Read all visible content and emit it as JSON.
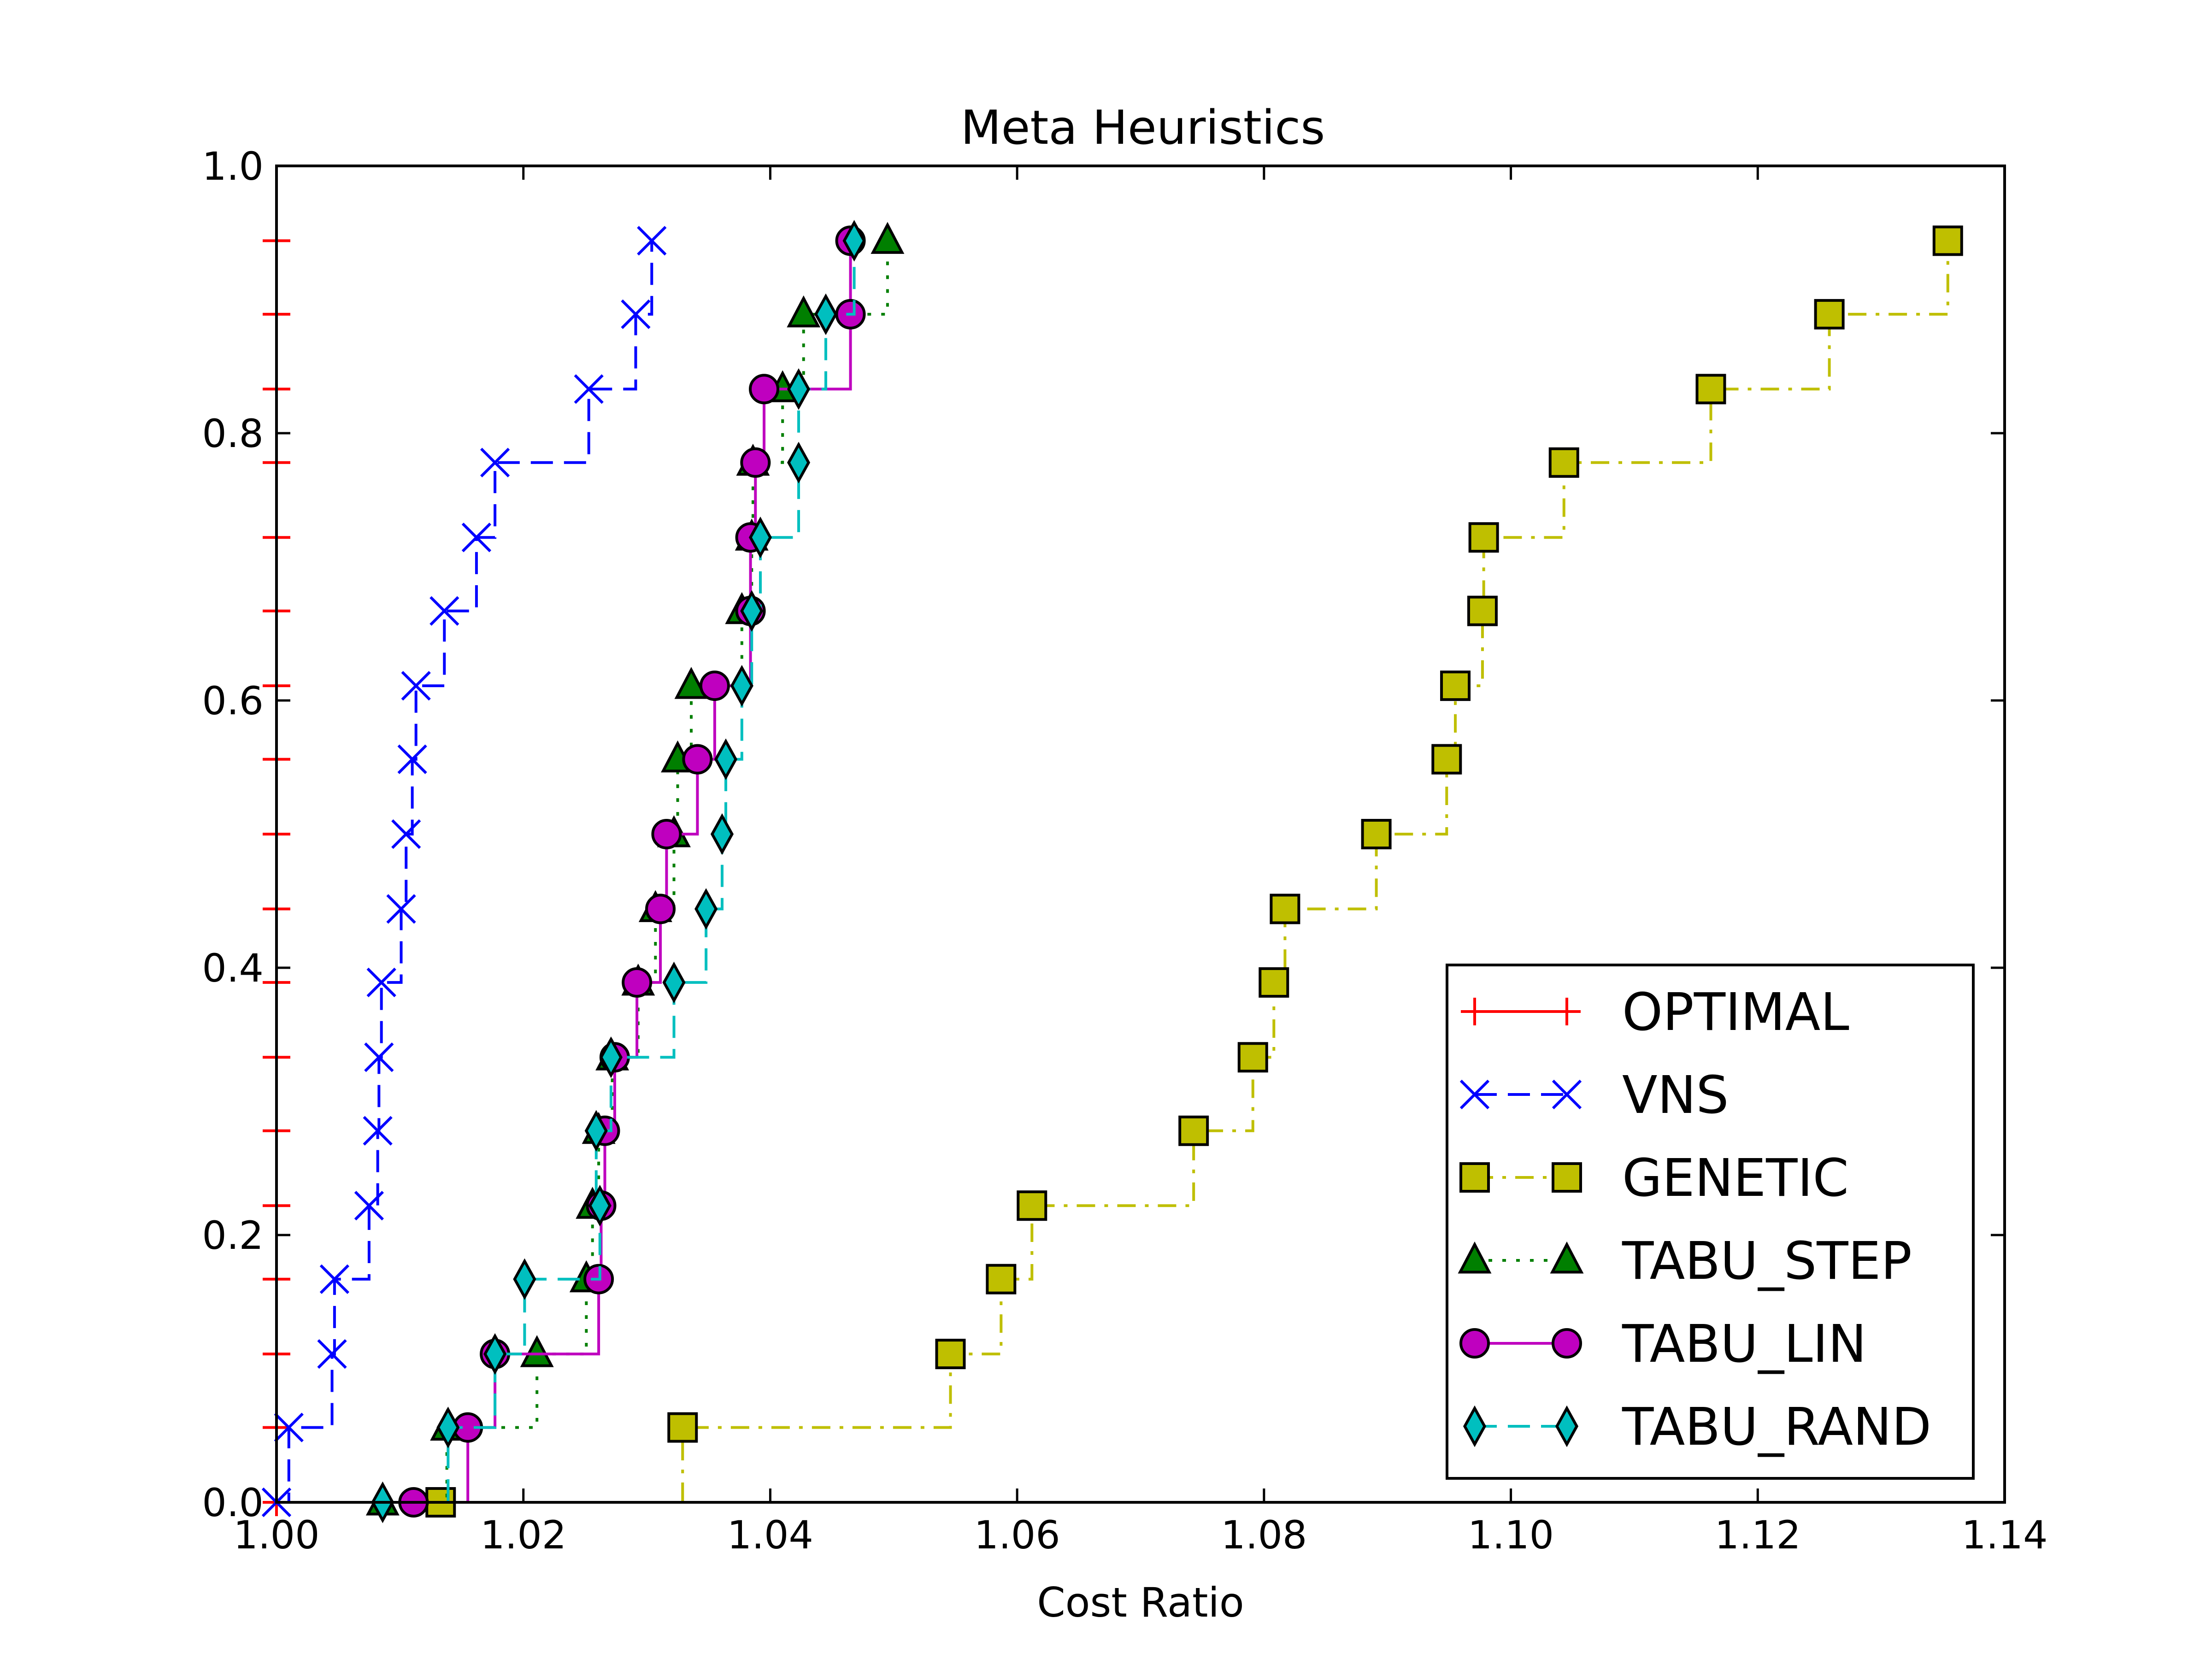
{
  "chart_data": {
    "type": "line",
    "title": "Meta Heuristics",
    "xlabel": "Cost Ratio",
    "ylabel": "",
    "xlim": [
      1.0,
      1.14
    ],
    "ylim": [
      0.0,
      1.0
    ],
    "xticks": [
      "1.00",
      "1.02",
      "1.04",
      "1.06",
      "1.08",
      "1.10",
      "1.12",
      "1.14"
    ],
    "yticks": [
      "0.0",
      "0.2",
      "0.4",
      "0.6",
      "0.8",
      "1.0"
    ],
    "grid": false,
    "legend_position": "lower-right",
    "series": [
      {
        "name": "OPTIMAL",
        "color": "#ff0000",
        "marker": "plus",
        "line_style": "solid",
        "x": [
          1.0,
          1.0,
          1.0,
          1.0,
          1.0,
          1.0,
          1.0,
          1.0,
          1.0,
          1.0,
          1.0,
          1.0,
          1.0,
          1.0,
          1.0,
          1.0,
          1.0,
          1.0
        ],
        "y": [
          0.0,
          0.056,
          0.111,
          0.167,
          0.222,
          0.278,
          0.333,
          0.389,
          0.444,
          0.5,
          0.556,
          0.611,
          0.667,
          0.722,
          0.778,
          0.833,
          0.889,
          0.944
        ]
      },
      {
        "name": "VNS",
        "color": "#0000ff",
        "marker": "x",
        "line_style": "dashed",
        "x": [
          1.0,
          1.001,
          1.0045,
          1.0047,
          1.0075,
          1.0082,
          1.0083,
          1.0085,
          1.0101,
          1.0105,
          1.011,
          1.0113,
          1.0136,
          1.0162,
          1.0177,
          1.0253,
          1.0291,
          1.0304
        ],
        "y": [
          0.0,
          0.056,
          0.111,
          0.167,
          0.222,
          0.278,
          0.333,
          0.389,
          0.444,
          0.5,
          0.556,
          0.611,
          0.667,
          0.722,
          0.778,
          0.833,
          0.889,
          0.944
        ]
      },
      {
        "name": "GENETIC",
        "color": "#bfbf00",
        "marker": "square",
        "line_style": "dashdot",
        "x": [
          1.0133,
          1.0329,
          1.0546,
          1.0587,
          1.0612,
          1.0743,
          1.0791,
          1.0808,
          1.0817,
          1.0891,
          1.0948,
          1.0955,
          1.0977,
          1.0978,
          1.1043,
          1.1162,
          1.1258,
          1.1354
        ],
        "y": [
          0.0,
          0.056,
          0.111,
          0.167,
          0.222,
          0.278,
          0.333,
          0.389,
          0.444,
          0.5,
          0.556,
          0.611,
          0.667,
          0.722,
          0.778,
          0.833,
          0.889,
          0.944
        ]
      },
      {
        "name": "TABU_STEP",
        "color": "#007f00",
        "marker": "triangle",
        "line_style": "dotted",
        "x": [
          1.0086,
          1.0138,
          1.0211,
          1.0251,
          1.0256,
          1.0261,
          1.0272,
          1.0293,
          1.0307,
          1.0322,
          1.0325,
          1.0336,
          1.0377,
          1.0385,
          1.0386,
          1.041,
          1.0427,
          1.0495
        ],
        "y": [
          0.0,
          0.056,
          0.111,
          0.167,
          0.222,
          0.278,
          0.333,
          0.389,
          0.444,
          0.5,
          0.556,
          0.611,
          0.667,
          0.722,
          0.778,
          0.833,
          0.889,
          0.944
        ]
      },
      {
        "name": "TABU_LIN",
        "color": "#bf00bf",
        "marker": "circle",
        "line_style": "solid",
        "x": [
          1.0111,
          1.0155,
          1.0177,
          1.0261,
          1.0263,
          1.0266,
          1.0274,
          1.0292,
          1.0311,
          1.0316,
          1.0341,
          1.0355,
          1.0384,
          1.0384,
          1.0388,
          1.0395,
          1.0465,
          1.0465
        ],
        "y": [
          0.0,
          0.056,
          0.111,
          0.167,
          0.222,
          0.278,
          0.333,
          0.389,
          0.444,
          0.5,
          0.556,
          0.611,
          0.667,
          0.722,
          0.778,
          0.833,
          0.889,
          0.944
        ]
      },
      {
        "name": "TABU_RAND",
        "color": "#00bfbf",
        "marker": "diamond",
        "line_style": "dashed",
        "x": [
          1.0086,
          1.0139,
          1.0177,
          1.0201,
          1.0262,
          1.0259,
          1.0271,
          1.0322,
          1.0348,
          1.0361,
          1.0364,
          1.0377,
          1.0385,
          1.0392,
          1.0423,
          1.0423,
          1.0445,
          1.0468
        ],
        "y": [
          0.0,
          0.056,
          0.111,
          0.167,
          0.222,
          0.278,
          0.333,
          0.389,
          0.444,
          0.5,
          0.556,
          0.611,
          0.667,
          0.722,
          0.778,
          0.833,
          0.889,
          0.944
        ]
      }
    ]
  }
}
